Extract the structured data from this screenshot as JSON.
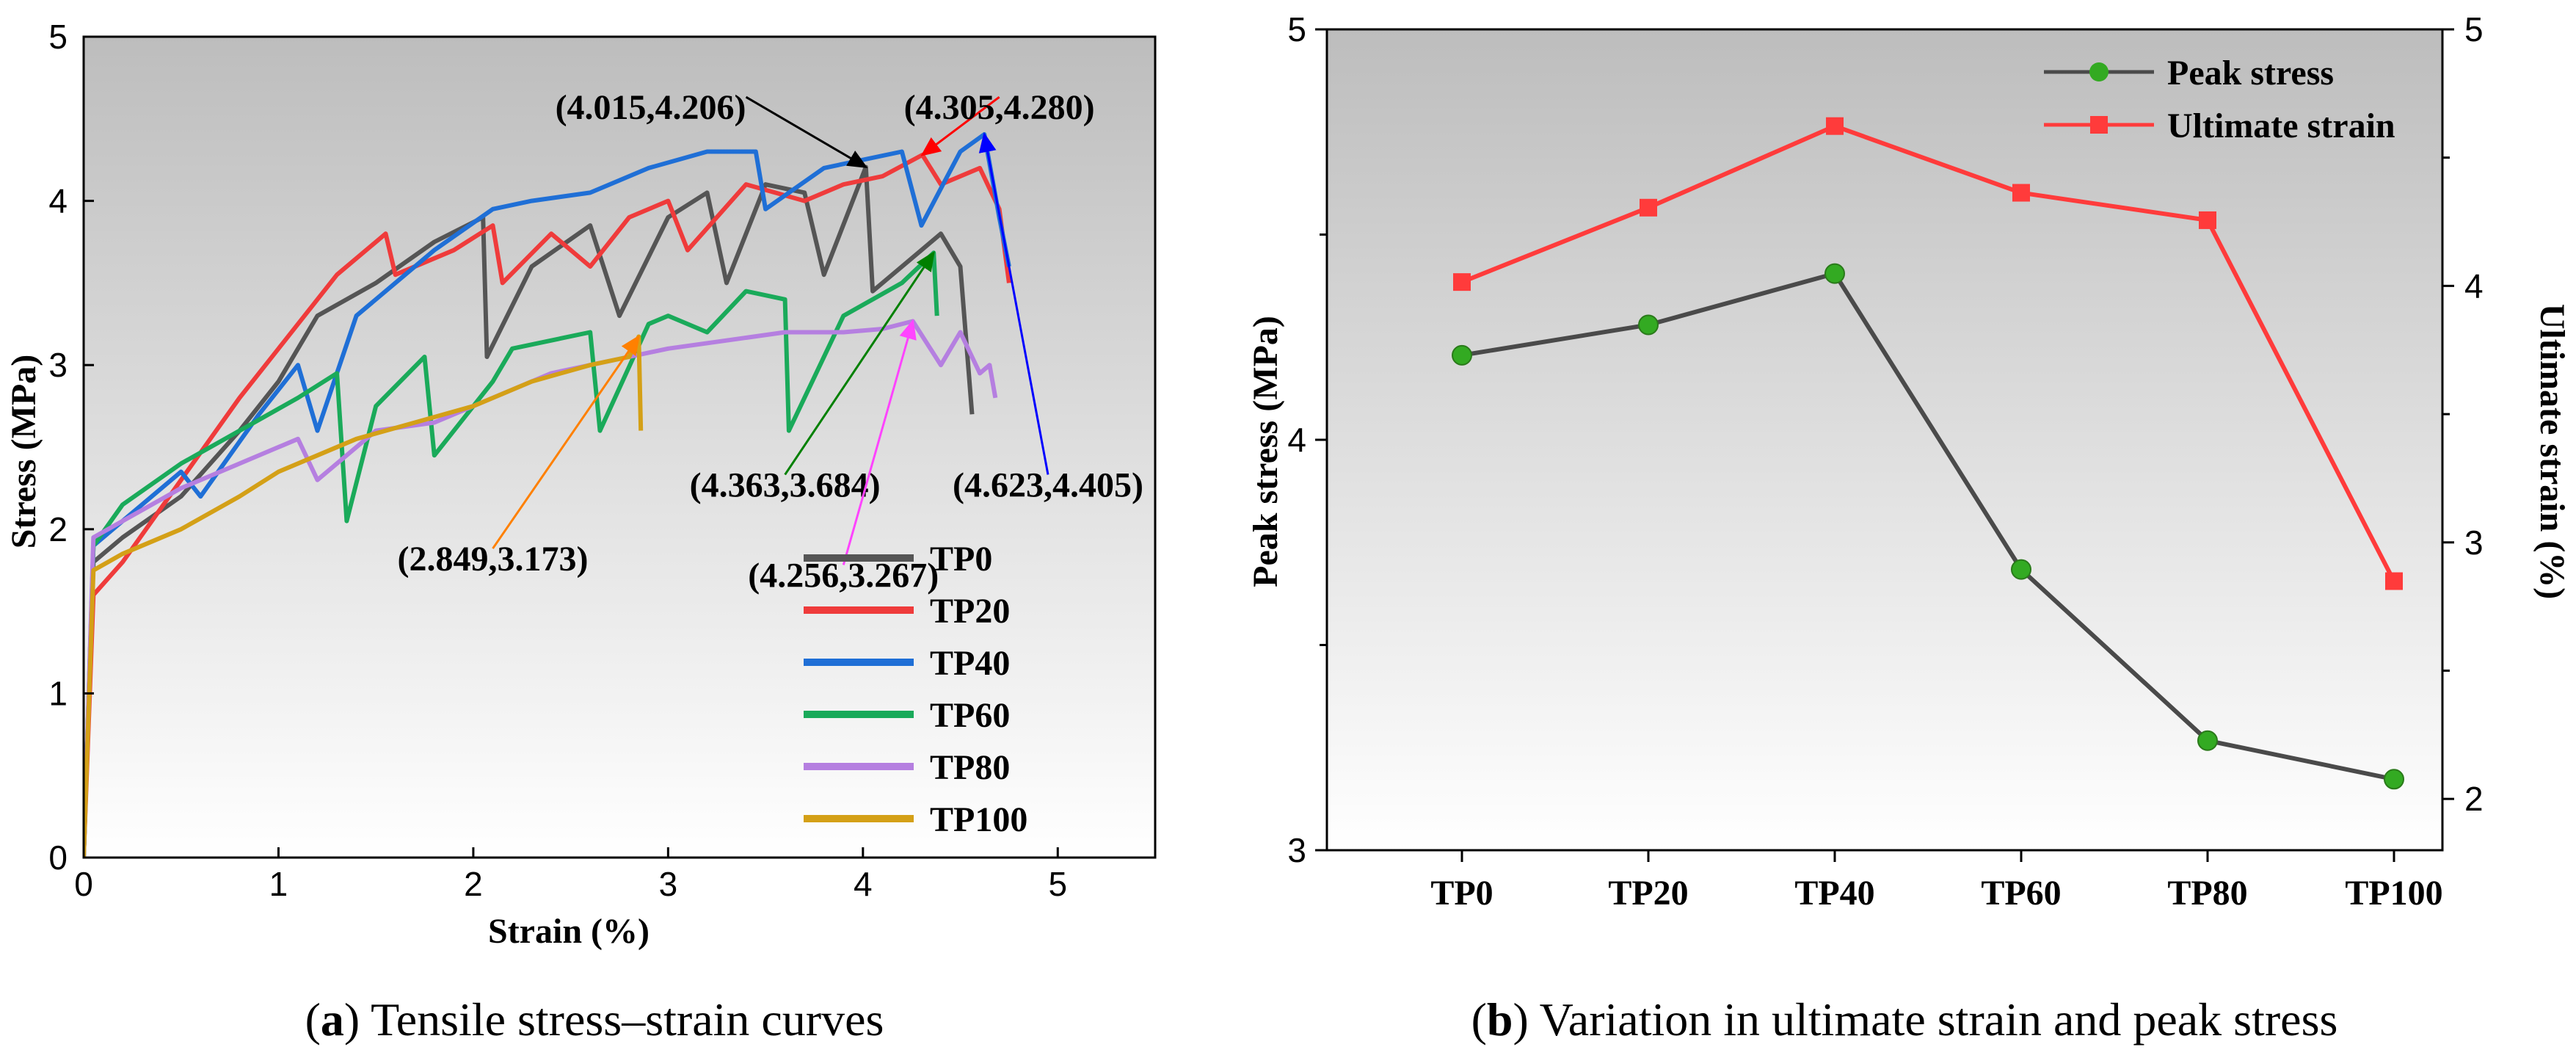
{
  "chart_data": [
    {
      "panel": "a",
      "type": "line",
      "caption_letter": "a",
      "caption_text": " Tensile stress–strain curves",
      "xlabel": "Strain (%)",
      "ylabel": "Stress (MPa)",
      "xlim": [
        0,
        5.5
      ],
      "ylim": [
        0,
        5
      ],
      "xticks": [
        0,
        1,
        2,
        3,
        4,
        5
      ],
      "yticks": [
        0,
        1,
        2,
        3,
        4,
        5
      ],
      "legend_position": "bottom-right",
      "series": [
        {
          "name": "TP0",
          "color": "#555555",
          "points": [
            [
              0,
              0
            ],
            [
              0.05,
              1.8
            ],
            [
              0.2,
              1.95
            ],
            [
              0.5,
              2.2
            ],
            [
              0.8,
              2.6
            ],
            [
              1.0,
              2.9
            ],
            [
              1.2,
              3.3
            ],
            [
              1.5,
              3.5
            ],
            [
              1.8,
              3.75
            ],
            [
              2.05,
              3.9
            ],
            [
              2.07,
              3.05
            ],
            [
              2.3,
              3.6
            ],
            [
              2.6,
              3.85
            ],
            [
              2.75,
              3.3
            ],
            [
              3.0,
              3.9
            ],
            [
              3.2,
              4.05
            ],
            [
              3.3,
              3.5
            ],
            [
              3.5,
              4.1
            ],
            [
              3.7,
              4.05
            ],
            [
              3.8,
              3.55
            ],
            [
              4.015,
              4.206
            ],
            [
              4.05,
              3.45
            ],
            [
              4.3,
              3.7
            ],
            [
              4.4,
              3.8
            ],
            [
              4.5,
              3.6
            ],
            [
              4.56,
              2.7
            ]
          ]
        },
        {
          "name": "TP20",
          "color": "#ef3b3b",
          "points": [
            [
              0,
              0
            ],
            [
              0.05,
              1.6
            ],
            [
              0.2,
              1.8
            ],
            [
              0.5,
              2.3
            ],
            [
              0.8,
              2.8
            ],
            [
              1.0,
              3.1
            ],
            [
              1.3,
              3.55
            ],
            [
              1.55,
              3.8
            ],
            [
              1.6,
              3.55
            ],
            [
              1.9,
              3.7
            ],
            [
              2.1,
              3.85
            ],
            [
              2.15,
              3.5
            ],
            [
              2.4,
              3.8
            ],
            [
              2.6,
              3.6
            ],
            [
              2.8,
              3.9
            ],
            [
              3.0,
              4.0
            ],
            [
              3.1,
              3.7
            ],
            [
              3.4,
              4.1
            ],
            [
              3.7,
              4.0
            ],
            [
              3.9,
              4.1
            ],
            [
              4.1,
              4.15
            ],
            [
              4.305,
              4.28
            ],
            [
              4.4,
              4.1
            ],
            [
              4.6,
              4.2
            ],
            [
              4.7,
              3.95
            ],
            [
              4.75,
              3.5
            ]
          ]
        },
        {
          "name": "TP40",
          "color": "#1f6fd6",
          "points": [
            [
              0,
              0
            ],
            [
              0.05,
              1.9
            ],
            [
              0.2,
              2.05
            ],
            [
              0.5,
              2.35
            ],
            [
              0.6,
              2.2
            ],
            [
              0.9,
              2.7
            ],
            [
              1.1,
              3.0
            ],
            [
              1.2,
              2.6
            ],
            [
              1.4,
              3.3
            ],
            [
              1.8,
              3.7
            ],
            [
              2.1,
              3.95
            ],
            [
              2.3,
              4.0
            ],
            [
              2.6,
              4.05
            ],
            [
              2.9,
              4.2
            ],
            [
              3.2,
              4.3
            ],
            [
              3.45,
              4.3
            ],
            [
              3.5,
              3.95
            ],
            [
              3.8,
              4.2
            ],
            [
              4.2,
              4.3
            ],
            [
              4.3,
              3.85
            ],
            [
              4.5,
              4.3
            ],
            [
              4.623,
              4.405
            ],
            [
              4.7,
              3.9
            ],
            [
              4.75,
              3.6
            ]
          ]
        },
        {
          "name": "TP60",
          "color": "#1aaa5a",
          "points": [
            [
              0,
              0
            ],
            [
              0.05,
              1.9
            ],
            [
              0.2,
              2.15
            ],
            [
              0.5,
              2.4
            ],
            [
              0.8,
              2.6
            ],
            [
              1.1,
              2.8
            ],
            [
              1.3,
              2.95
            ],
            [
              1.35,
              2.05
            ],
            [
              1.5,
              2.75
            ],
            [
              1.75,
              3.05
            ],
            [
              1.8,
              2.45
            ],
            [
              2.1,
              2.9
            ],
            [
              2.2,
              3.1
            ],
            [
              2.6,
              3.2
            ],
            [
              2.65,
              2.6
            ],
            [
              2.9,
              3.25
            ],
            [
              3.0,
              3.3
            ],
            [
              3.2,
              3.2
            ],
            [
              3.4,
              3.45
            ],
            [
              3.6,
              3.4
            ],
            [
              3.62,
              2.6
            ],
            [
              3.9,
              3.3
            ],
            [
              4.2,
              3.5
            ],
            [
              4.363,
              3.684
            ],
            [
              4.38,
              3.3
            ]
          ]
        },
        {
          "name": "TP80",
          "color": "#b57fe0",
          "points": [
            [
              0,
              0
            ],
            [
              0.05,
              1.95
            ],
            [
              0.2,
              2.05
            ],
            [
              0.5,
              2.25
            ],
            [
              0.8,
              2.4
            ],
            [
              1.1,
              2.55
            ],
            [
              1.2,
              2.3
            ],
            [
              1.5,
              2.6
            ],
            [
              1.8,
              2.65
            ],
            [
              2.1,
              2.8
            ],
            [
              2.4,
              2.95
            ],
            [
              2.8,
              3.05
            ],
            [
              3.0,
              3.1
            ],
            [
              3.3,
              3.15
            ],
            [
              3.6,
              3.2
            ],
            [
              3.9,
              3.2
            ],
            [
              4.1,
              3.22
            ],
            [
              4.256,
              3.267
            ],
            [
              4.4,
              3.0
            ],
            [
              4.5,
              3.2
            ],
            [
              4.6,
              2.95
            ],
            [
              4.65,
              3.0
            ],
            [
              4.68,
              2.8
            ]
          ]
        },
        {
          "name": "TP100",
          "color": "#d4a017",
          "points": [
            [
              0,
              0
            ],
            [
              0.05,
              1.75
            ],
            [
              0.2,
              1.85
            ],
            [
              0.5,
              2.0
            ],
            [
              0.8,
              2.2
            ],
            [
              1.0,
              2.35
            ],
            [
              1.2,
              2.45
            ],
            [
              1.4,
              2.55
            ],
            [
              1.7,
              2.65
            ],
            [
              2.0,
              2.75
            ],
            [
              2.3,
              2.9
            ],
            [
              2.6,
              3.0
            ],
            [
              2.8,
              3.05
            ],
            [
              2.849,
              3.173
            ],
            [
              2.86,
              2.6
            ]
          ]
        }
      ],
      "annotations": [
        {
          "label": "(4.015,4.206)",
          "point": [
            4.015,
            4.206
          ],
          "text_at": [
            3.4,
            4.57
          ],
          "text_align": "end",
          "color": "#000000"
        },
        {
          "label": "(4.305,4.280)",
          "point": [
            4.305,
            4.28
          ],
          "text_at": [
            4.7,
            4.57
          ],
          "text_align": "middle",
          "color": "#ff0000"
        },
        {
          "label": "(4.363,3.684)",
          "point": [
            4.363,
            3.684
          ],
          "text_at": [
            3.6,
            2.27
          ],
          "text_align": "middle",
          "color": "#008000"
        },
        {
          "label": "(4.623,4.405)",
          "point": [
            4.623,
            4.405
          ],
          "text_at": [
            4.95,
            2.27
          ],
          "text_align": "middle",
          "color": "#0000ff"
        },
        {
          "label": "(2.849,3.173)",
          "point": [
            2.849,
            3.173
          ],
          "text_at": [
            2.1,
            1.82
          ],
          "text_align": "middle",
          "color": "#ff8000"
        },
        {
          "label": "(4.256,3.267)",
          "point": [
            4.256,
            3.267
          ],
          "text_at": [
            3.9,
            1.72
          ],
          "text_align": "middle",
          "color": "#ff44ff"
        }
      ]
    },
    {
      "panel": "b",
      "type": "line",
      "caption_letter": "b",
      "caption_text": " Variation in ultimate strain and peak stress",
      "categories": [
        "TP0",
        "TP20",
        "TP40",
        "TP60",
        "TP80",
        "TP100"
      ],
      "ylabel_left": "Peak stress (MPa)",
      "ylabel_right": "Ultimate strain (%)",
      "ylim_left": [
        3,
        5
      ],
      "ylim_right": [
        1.8,
        5
      ],
      "yticks_left": [
        3,
        4,
        5
      ],
      "yticks_right": [
        2,
        3,
        4,
        5
      ],
      "legend_position": "top-right",
      "series": [
        {
          "name": "Peak stress",
          "axis": "left",
          "color": "#4a4a4a",
          "marker": "circle",
          "marker_color": "#33aa22",
          "values": [
            4.206,
            4.28,
            4.405,
            3.684,
            3.267,
            3.173
          ]
        },
        {
          "name": "Ultimate strain",
          "axis": "right",
          "color": "#ff3b3b",
          "marker": "square",
          "marker_color": "#ff3b3b",
          "values": [
            4.015,
            4.305,
            4.623,
            4.363,
            4.256,
            2.849
          ]
        }
      ]
    }
  ]
}
